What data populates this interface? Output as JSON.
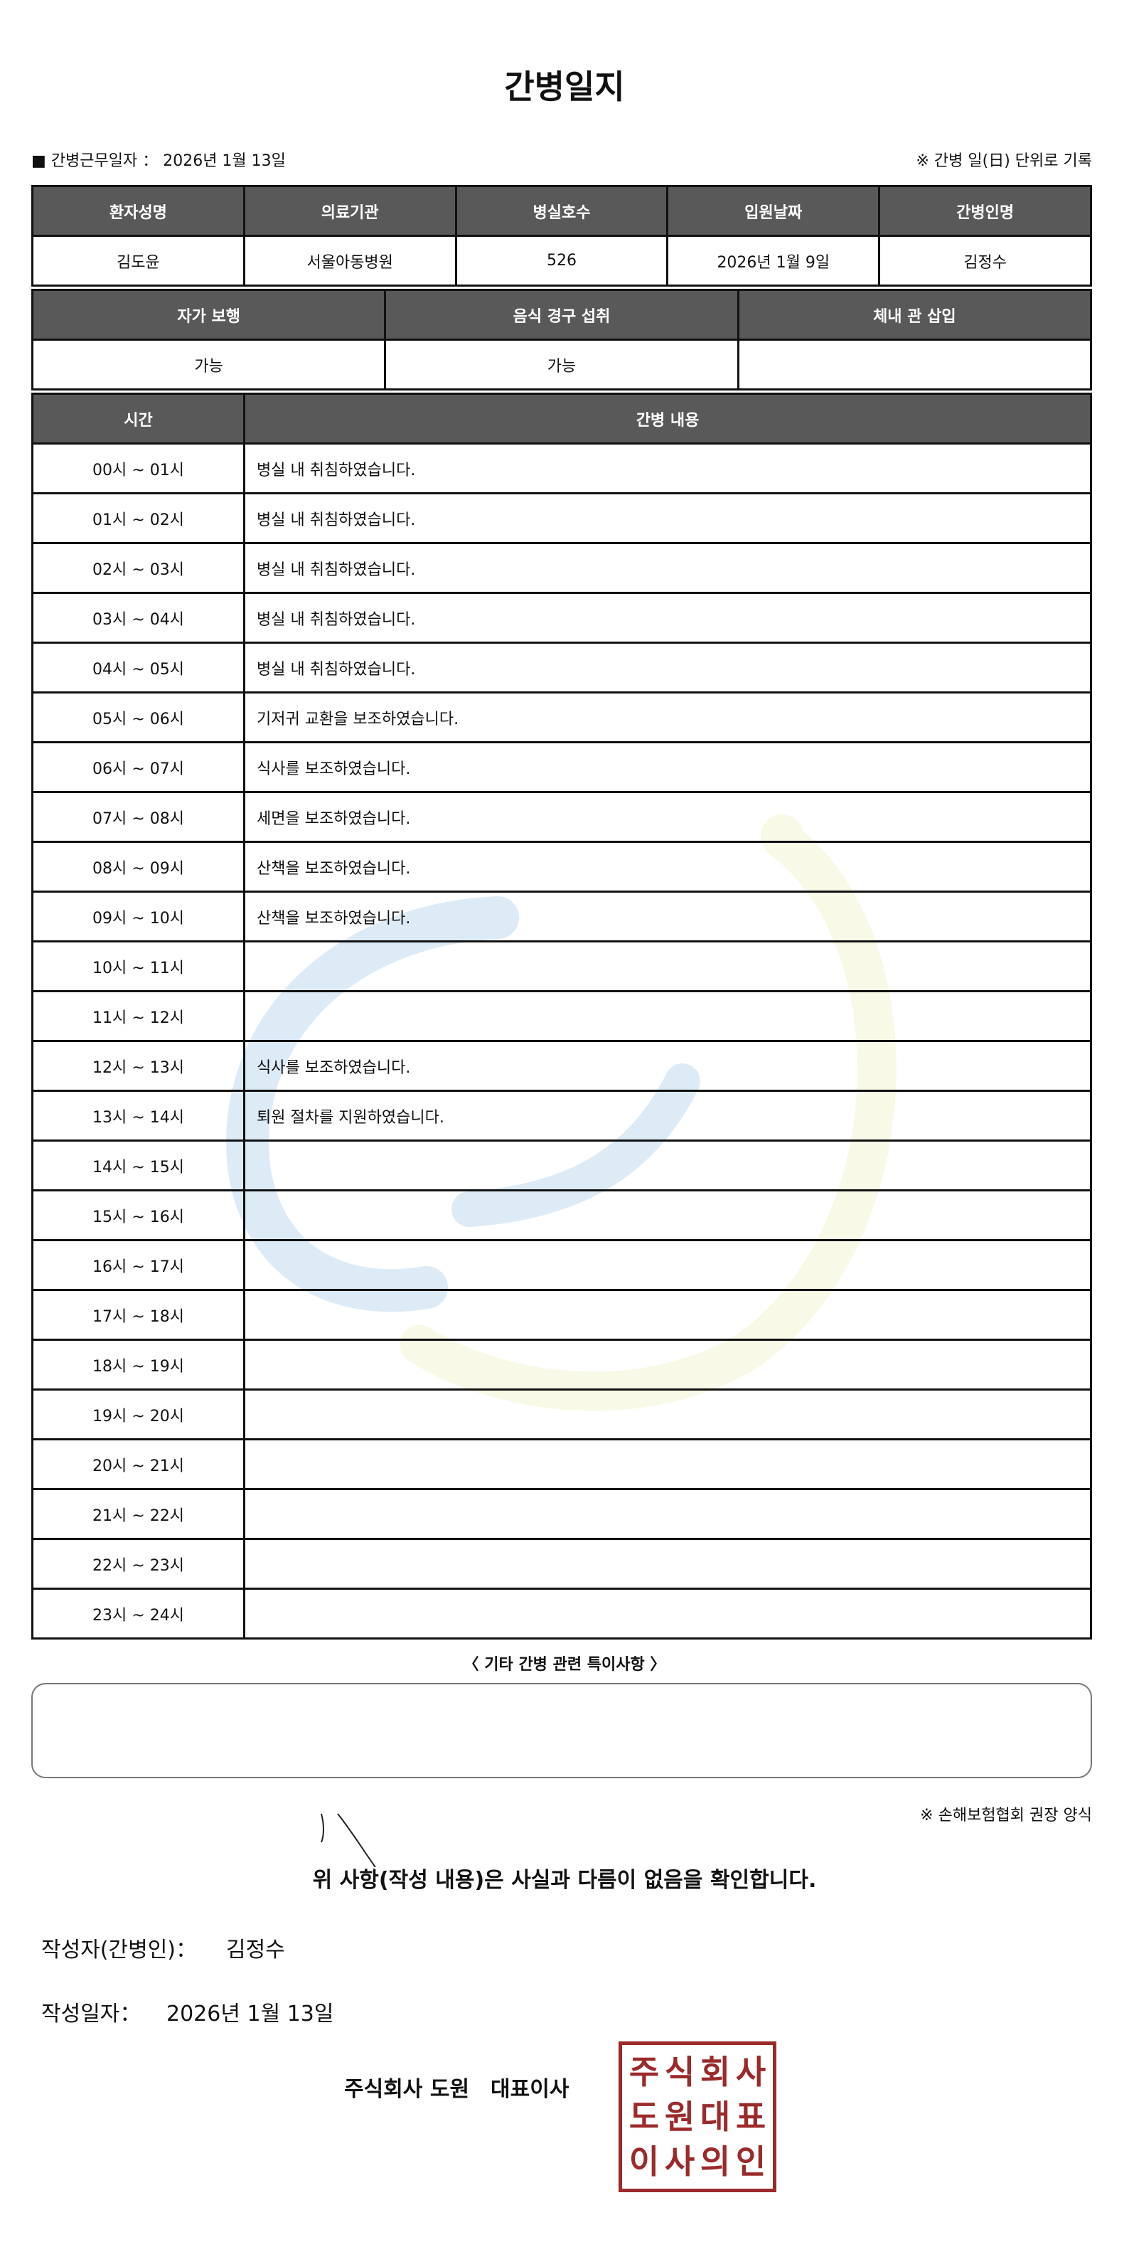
{
  "title": "간병일지",
  "work_date_label": "■ 간병근무일자 ： 2026년 1월 13일",
  "record_note": "※ 간병 일(日) 단위로 기록",
  "patient_table": {
    "headers": [
      "환자성명",
      "의료기관",
      "병실호수",
      "입원날짜",
      "간병인명"
    ],
    "values": [
      "김도윤",
      "서울아동병원",
      "526",
      "2026년 1월 9일",
      "김정수"
    ]
  },
  "status_table": {
    "headers": [
      "자가 보행",
      "음식 경구 섭취",
      "체내 관 삽입"
    ],
    "values": [
      "가능",
      "가능",
      ""
    ]
  },
  "log_table": {
    "headers": [
      "시간",
      "간병 내용"
    ],
    "rows": [
      {
        "time": "00시 ~ 01시",
        "content": "병실 내 취침하였습니다."
      },
      {
        "time": "01시 ~ 02시",
        "content": "병실 내 취침하였습니다."
      },
      {
        "time": "02시 ~ 03시",
        "content": "병실 내 취침하였습니다."
      },
      {
        "time": "03시 ~ 04시",
        "content": "병실 내 취침하였습니다."
      },
      {
        "time": "04시 ~ 05시",
        "content": "병실 내 취침하였습니다."
      },
      {
        "time": "05시 ~ 06시",
        "content": "기저귀 교환을 보조하였습니다."
      },
      {
        "time": "06시 ~ 07시",
        "content": "식사를 보조하였습니다."
      },
      {
        "time": "07시 ~ 08시",
        "content": "세면을 보조하였습니다."
      },
      {
        "time": "08시 ~ 09시",
        "content": "산책을 보조하였습니다."
      },
      {
        "time": "09시 ~ 10시",
        "content": "산책을 보조하였습니다."
      },
      {
        "time": "10시 ~ 11시",
        "content": ""
      },
      {
        "time": "11시 ~ 12시",
        "content": ""
      },
      {
        "time": "12시 ~ 13시",
        "content": "식사를 보조하였습니다."
      },
      {
        "time": "13시 ~ 14시",
        "content": "퇴원 절차를 지원하였습니다."
      },
      {
        "time": "14시 ~ 15시",
        "content": ""
      },
      {
        "time": "15시 ~ 16시",
        "content": ""
      },
      {
        "time": "16시 ~ 17시",
        "content": ""
      },
      {
        "time": "17시 ~ 18시",
        "content": ""
      },
      {
        "time": "18시 ~ 19시",
        "content": ""
      },
      {
        "time": "19시 ~ 20시",
        "content": ""
      },
      {
        "time": "20시 ~ 21시",
        "content": ""
      },
      {
        "time": "21시 ~ 22시",
        "content": ""
      },
      {
        "time": "22시 ~ 23시",
        "content": ""
      },
      {
        "time": "23시 ~ 24시",
        "content": ""
      }
    ]
  },
  "special_notes_label": "〈 기타 간병 관련 특이사항 〉",
  "special_notes": "",
  "form_note": "※ 손해보험협회 권장 양식",
  "confirmation": "위 사항(작성 내용)은 사실과 다름이 없음을 확인합니다.",
  "author_label": "작성자(간병인)：",
  "author_name": "김정수",
  "written_date_label": "작성일자：",
  "written_date": "2026년 1월 13일",
  "company": "주식회사 도원　대표이사",
  "stamp_text": "주식회사도원대표이사의인",
  "colors": {
    "header_bg": "#595959",
    "stamp": "#9b2a2a"
  }
}
